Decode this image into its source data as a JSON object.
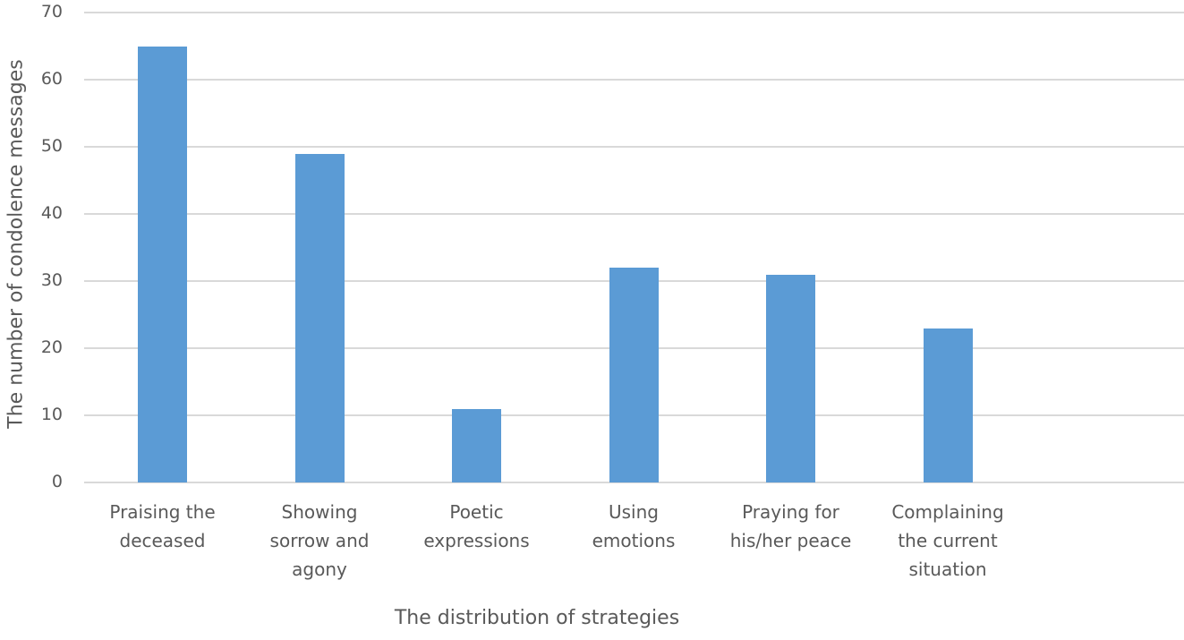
{
  "chart_data": {
    "type": "bar",
    "title": "",
    "xlabel": "The distribution of strategies",
    "ylabel": "The number of condolence messages",
    "categories": [
      "Praising the deceased",
      "Showing sorrow and agony",
      "Poetic expressions",
      "Using emotions",
      "Praying for his/her peace",
      "Complaining the current situation"
    ],
    "category_labels_wrapped": [
      "Praising the\ndeceased",
      "Showing\nsorrow and\nagony",
      "Poetic\nexpressions",
      "Using\nemotions",
      "Praying for\nhis/her peace",
      "Complaining\nthe current\nsituation"
    ],
    "values": [
      65,
      49,
      11,
      32,
      31,
      23
    ],
    "ylim": [
      0,
      70
    ],
    "yticks": [
      0,
      10,
      20,
      30,
      40,
      50,
      60,
      70
    ],
    "grid": true,
    "legend": null,
    "bar_color": "#5b9bd5",
    "gridline_color": "#d9d9d9"
  },
  "axes": {
    "y_title": "The number of condolence messages",
    "x_title": "The distribution of strategies"
  }
}
